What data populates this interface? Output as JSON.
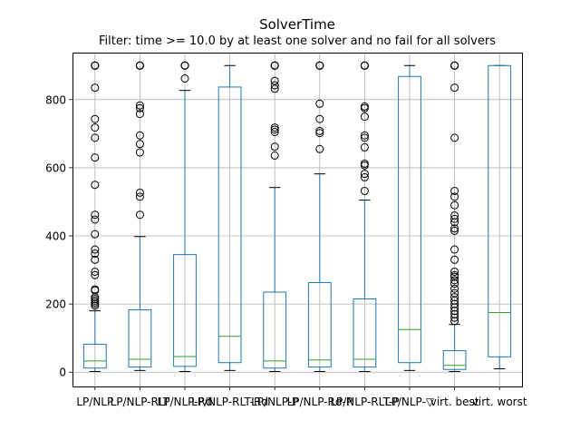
{
  "chart_data": {
    "type": "boxplot",
    "title": "SolverTime",
    "subtitle": "Filter: time >= 10.0 by at least one solver and no fail for all solvers",
    "xlabel": "",
    "ylabel": "",
    "ylim": [
      -42,
      938
    ],
    "yticks": [
      0,
      200,
      400,
      600,
      800
    ],
    "grid": true,
    "colors": {
      "box": "#1f77b4",
      "median": "#2ca02c",
      "whisker": "#1f77b4",
      "cap": "#000000",
      "flier": "#000000",
      "grid": "#b0b0b0"
    },
    "categories": [
      "LP/NLP",
      "LP/NLP-RLT",
      "LP/NLP-Rd",
      "LP/NLP-RLT-Rd",
      "LP/NLP-P",
      "LP/NLP-Rd-P",
      "LP/NLP-RLT-P",
      "LP/NLP-▽",
      "virt. best",
      "virt. worst"
    ],
    "boxes": [
      {
        "whislo": 2,
        "q1": 12,
        "med": 33,
        "q3": 82,
        "whishi": 180,
        "fliers": [
          900,
          900,
          900,
          900,
          835,
          743,
          718,
          688,
          630,
          550,
          462,
          448,
          405,
          360,
          348,
          330,
          295,
          285,
          243,
          240,
          220,
          215,
          210,
          205,
          200,
          195
        ]
      },
      {
        "whislo": 5,
        "q1": 15,
        "med": 38,
        "q3": 183,
        "whishi": 398,
        "fliers": [
          900,
          900,
          900,
          900,
          783,
          775,
          758,
          695,
          670,
          645,
          527,
          515,
          462
        ]
      },
      {
        "whislo": 2,
        "q1": 17,
        "med": 46,
        "q3": 345,
        "whishi": 827,
        "fliers": [
          900,
          900,
          900,
          900,
          862
        ]
      },
      {
        "whislo": 5,
        "q1": 28,
        "med": 105,
        "q3": 837,
        "whishi": 900,
        "fliers": []
      },
      {
        "whislo": 2,
        "q1": 12,
        "med": 33,
        "q3": 235,
        "whishi": 542,
        "fliers": [
          900,
          900,
          900,
          900,
          855,
          842,
          832,
          718,
          712,
          705,
          662,
          636
        ]
      },
      {
        "whislo": 2,
        "q1": 15,
        "med": 36,
        "q3": 263,
        "whishi": 582,
        "fliers": [
          900,
          900,
          900,
          900,
          788,
          743,
          708,
          702,
          655
        ]
      },
      {
        "whislo": 2,
        "q1": 15,
        "med": 38,
        "q3": 215,
        "whishi": 505,
        "fliers": [
          900,
          900,
          900,
          900,
          780,
          775,
          750,
          695,
          688,
          660,
          612,
          607,
          582,
          572,
          532
        ]
      },
      {
        "whislo": 5,
        "q1": 28,
        "med": 125,
        "q3": 868,
        "whishi": 900,
        "fliers": []
      },
      {
        "whislo": 2,
        "q1": 8,
        "med": 20,
        "q3": 63,
        "whishi": 140,
        "fliers": [
          900,
          900,
          900,
          900,
          835,
          688,
          532,
          515,
          490,
          460,
          450,
          440,
          422,
          415,
          360,
          330,
          295,
          285,
          280,
          270,
          260,
          245,
          232,
          220,
          210,
          200,
          190,
          180,
          170,
          160,
          150
        ]
      },
      {
        "whislo": 10,
        "q1": 45,
        "med": 175,
        "q3": 900,
        "whishi": 900,
        "fliers": []
      }
    ]
  }
}
